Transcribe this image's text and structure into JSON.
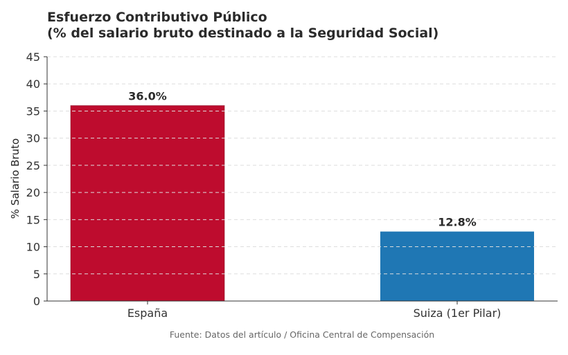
{
  "chart_data": {
    "type": "bar",
    "title_line1": "Esfuerzo Contributivo Público",
    "title_line2": "(% del salario bruto destinado a la Seguridad Social)",
    "ylabel": "% Salario Bruto",
    "xlabel": "",
    "categories": [
      "España",
      "Suiza (1er Pilar)"
    ],
    "values": [
      36.0,
      12.8
    ],
    "data_labels": [
      "36.0%",
      "12.8%"
    ],
    "colors": [
      "#BE0C2E",
      "#1F77B4"
    ],
    "ylim": [
      0,
      45
    ],
    "yticks": [
      0,
      5,
      10,
      15,
      20,
      25,
      30,
      35,
      40,
      45
    ],
    "grid": "horizontal-dashed",
    "source": "Fuente: Datos del artículo / Oficina Central de Compensación"
  }
}
